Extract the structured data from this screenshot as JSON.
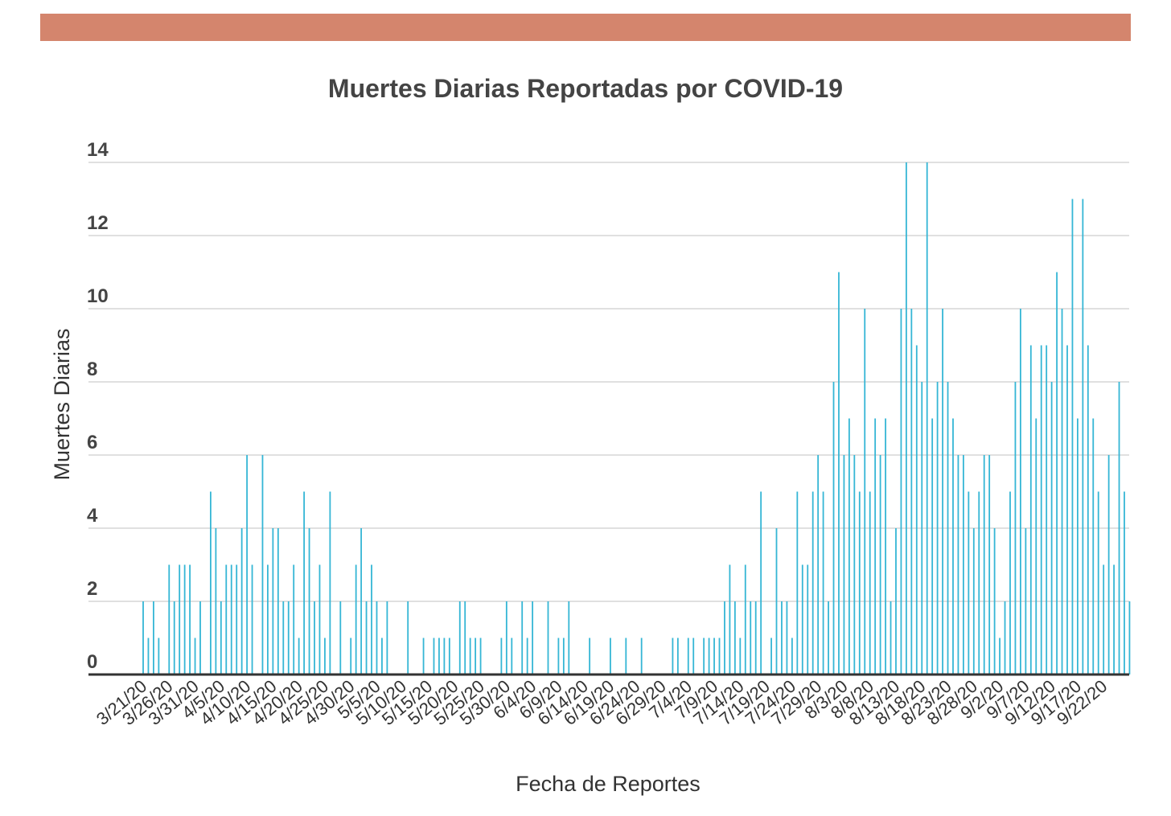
{
  "colors": {
    "top_band": "#d4856d",
    "bar": "#35b6d5",
    "grid": "#d6d6d6",
    "axis": "#333333",
    "title": "#444444"
  },
  "chart_data": {
    "type": "bar",
    "title": "Muertes Diarias Reportadas por COVID-19",
    "xlabel": "Fecha de Reportes",
    "ylabel": "Muertes Diarias",
    "ylim": [
      0,
      14
    ],
    "y_ticks": [
      0,
      2,
      4,
      6,
      8,
      10,
      12,
      14
    ],
    "grid": true,
    "legend": "none",
    "start_date": "3/21/20",
    "tick_every_days": 5,
    "x_tick_labels": [
      "3/21/20",
      "3/26/20",
      "3/31/20",
      "4/5/20",
      "4/10/20",
      "4/15/20",
      "4/20/20",
      "4/25/20",
      "4/30/20",
      "5/5/20",
      "5/10/20",
      "5/15/20",
      "5/20/20",
      "5/25/20",
      "5/30/20",
      "6/4/20",
      "6/9/20",
      "6/14/20",
      "6/19/20",
      "6/24/20",
      "6/29/20",
      "7/4/20",
      "7/9/20",
      "7/14/20",
      "7/19/20",
      "7/24/20",
      "7/29/20",
      "8/3/20",
      "8/8/20",
      "8/13/20",
      "8/18/20",
      "8/23/20",
      "8/28/20",
      "9/2/20",
      "9/7/20",
      "9/12/20",
      "9/17/20",
      "9/22/20"
    ],
    "values": [
      2,
      1,
      2,
      1,
      0,
      3,
      2,
      3,
      3,
      3,
      1,
      2,
      0,
      5,
      4,
      2,
      3,
      3,
      3,
      4,
      6,
      3,
      0,
      6,
      3,
      4,
      4,
      2,
      2,
      3,
      1,
      5,
      4,
      2,
      3,
      1,
      5,
      0,
      2,
      0,
      1,
      3,
      4,
      2,
      3,
      2,
      1,
      2,
      0,
      0,
      0,
      2,
      0,
      0,
      1,
      0,
      1,
      1,
      1,
      1,
      0,
      2,
      2,
      1,
      1,
      1,
      0,
      0,
      0,
      1,
      2,
      1,
      0,
      2,
      1,
      2,
      0,
      0,
      2,
      0,
      1,
      1,
      2,
      0,
      0,
      0,
      1,
      0,
      0,
      0,
      1,
      0,
      0,
      1,
      0,
      0,
      1,
      0,
      0,
      0,
      0,
      0,
      1,
      1,
      0,
      1,
      1,
      0,
      1,
      1,
      1,
      1,
      2,
      3,
      2,
      1,
      3,
      2,
      2,
      5,
      0,
      1,
      4,
      2,
      2,
      1,
      5,
      3,
      3,
      5,
      6,
      5,
      2,
      8,
      11,
      6,
      7,
      6,
      5,
      10,
      5,
      7,
      6,
      7,
      2,
      4,
      10,
      14,
      10,
      9,
      8,
      14,
      7,
      8,
      10,
      8,
      7,
      6,
      6,
      5,
      4,
      5,
      6,
      6,
      4,
      1,
      2,
      5,
      8,
      10,
      4,
      9,
      7,
      9,
      9,
      8,
      11,
      10,
      9,
      13,
      7,
      13,
      9,
      7,
      5,
      3,
      6,
      3,
      8,
      5,
      2
    ]
  }
}
